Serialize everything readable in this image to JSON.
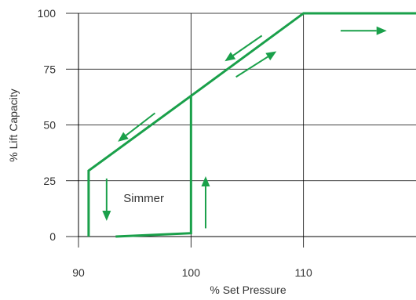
{
  "chart_data": {
    "type": "line",
    "title": "",
    "xlabel": "% Set Pressure",
    "ylabel": "% Lift Capacity",
    "xlim": [
      90,
      120
    ],
    "ylim": [
      0,
      100
    ],
    "x_ticks": [
      90,
      100,
      110
    ],
    "y_ticks": [
      0,
      25,
      50,
      75,
      100
    ],
    "grid": true,
    "colors": {
      "curve": "#1aa04a",
      "grid": "#000000",
      "text": "#333333"
    },
    "series": [
      {
        "values": [
          {
            "x": 93.3,
            "y": 0
          },
          {
            "x": 100,
            "y": 1.5
          },
          {
            "x": 100,
            "y": 63
          },
          {
            "x": 110,
            "y": 100
          },
          {
            "x": 120,
            "y": 100
          }
        ]
      },
      {
        "values": [
          {
            "x": 100,
            "y": 63
          },
          {
            "x": 90.9,
            "y": 29.5
          },
          {
            "x": 90.9,
            "y": 0
          }
        ]
      }
    ],
    "annotations": [
      {
        "text": "Simmer",
        "x": 95.8,
        "y": 15.5
      }
    ],
    "direction_arrows": [
      {
        "from": {
          "x": 101.3,
          "y": 3.7
        },
        "to": {
          "x": 101.3,
          "y": 27
        }
      },
      {
        "from": {
          "x": 104.0,
          "y": 71.5
        },
        "to": {
          "x": 107.6,
          "y": 83
        }
      },
      {
        "from": {
          "x": 106.3,
          "y": 90
        },
        "to": {
          "x": 103.0,
          "y": 78.5
        }
      },
      {
        "from": {
          "x": 113.3,
          "y": 92.2
        },
        "to": {
          "x": 117.4,
          "y": 92.2
        }
      },
      {
        "from": {
          "x": 96.8,
          "y": 55.3
        },
        "to": {
          "x": 93.5,
          "y": 42.5
        }
      },
      {
        "from": {
          "x": 92.5,
          "y": 26
        },
        "to": {
          "x": 92.5,
          "y": 7
        }
      }
    ]
  }
}
